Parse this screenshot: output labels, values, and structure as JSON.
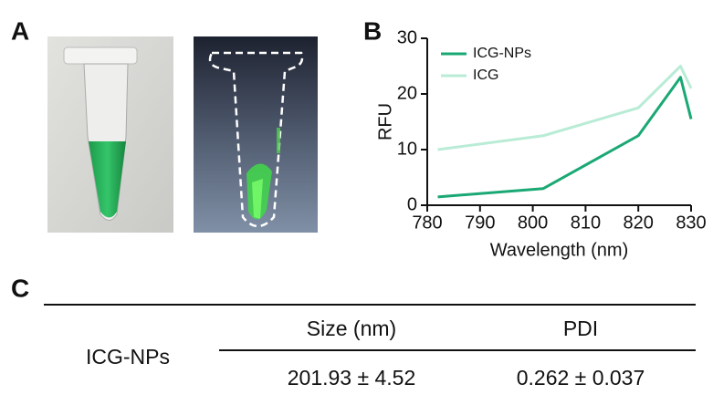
{
  "panel_labels": [
    "A",
    "B",
    "C"
  ],
  "chart_data": {
    "type": "line",
    "x": [
      782,
      802,
      820,
      828,
      830
    ],
    "xlabel": "Wavelength (nm)",
    "ylabel": "RFU",
    "series": [
      {
        "name": "ICG-NPs",
        "color": "#1aa874",
        "values": [
          1.5,
          3,
          12.5,
          23,
          15.5
        ]
      },
      {
        "name": "ICG",
        "color": "#b9ecd6",
        "values": [
          10,
          12.5,
          17.5,
          25,
          21
        ]
      }
    ],
    "xlim": [
      780,
      830
    ],
    "ylim": [
      0,
      30
    ],
    "xticks": [
      780,
      790,
      800,
      810,
      820,
      830
    ],
    "yticks": [
      0,
      10,
      20,
      30
    ],
    "legend": "upper left"
  },
  "table": {
    "header": [
      "Size (nm)",
      "PDI"
    ],
    "rows": [
      [
        "ICG-NPs",
        "201.93 ± 4.52",
        "0.262 ± 0.037"
      ]
    ]
  }
}
